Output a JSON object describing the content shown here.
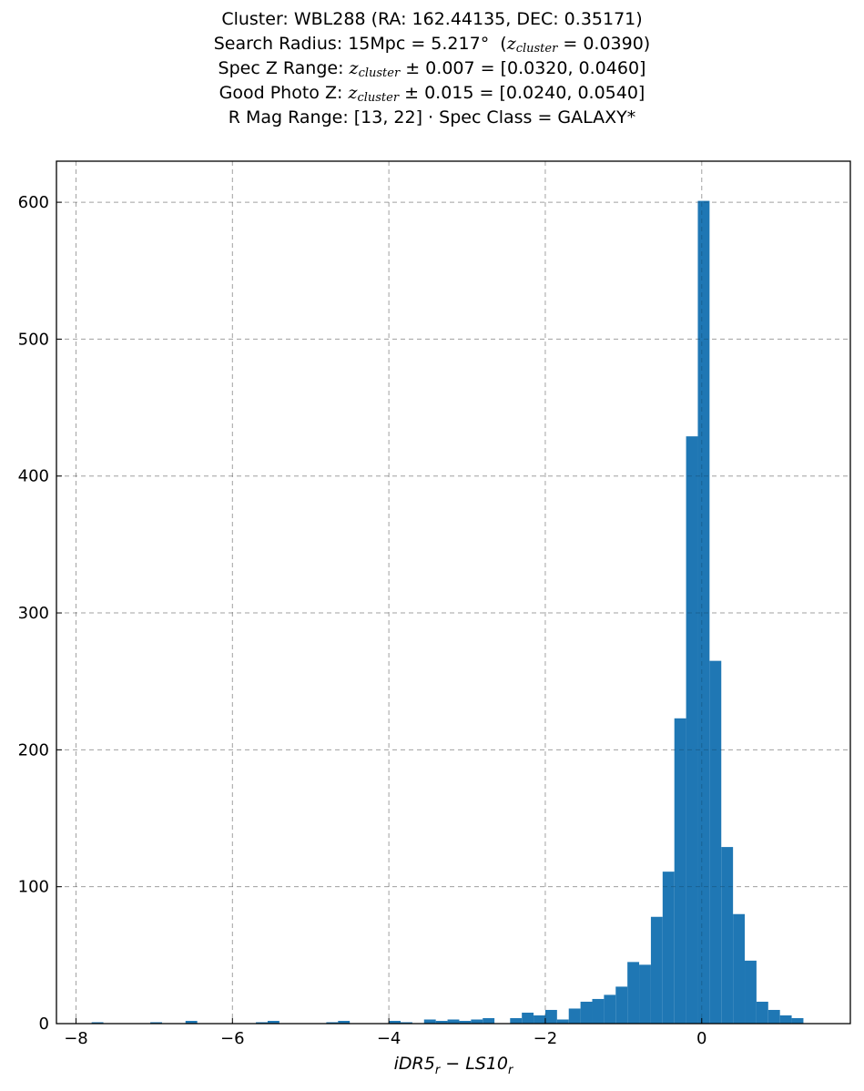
{
  "chart_data": {
    "type": "bar",
    "title_lines": [
      "Cluster: WBL288 (RA: 162.44135, DEC: 0.35171)",
      "Search Radius: 15Mpc = 5.217°  (z_cluster = 0.0390)",
      "Spec Z Range: z_cluster ± 0.007 = [0.0320, 0.0460]",
      "Good Photo Z: z_cluster ± 0.015 = [0.0240, 0.0540]",
      "R Mag Range: [13, 22] · Spec Class = GALAXY*"
    ],
    "title_parts": {
      "l1": "Cluster: WBL288 (RA: 162.44135, DEC: 0.35171)",
      "l2_pre": "Search Radius: 15Mpc = 5.217",
      "l2_deg": "°",
      "l2_z": "z",
      "l2_sub": "cluster",
      "l2_post": " = 0.0390)",
      "l3_pre": "Spec Z Range: ",
      "l3_z": "z",
      "l3_sub": "cluster",
      "l3_post": " ± 0.007 = [0.0320, 0.0460]",
      "l4_pre": "Good Photo Z: ",
      "l4_z": "z",
      "l4_sub": "cluster",
      "l4_post": " ± 0.015 = [0.0240, 0.0540]",
      "l5": "R Mag Range: [13, 22] · Spec Class = GALAXY*"
    },
    "xlabel": "iDR5r − LS10r",
    "xlabel_parts": {
      "a": "iDR5",
      "a_sub": "r",
      "op": " − ",
      "b": "LS10",
      "b_sub": "r"
    },
    "ylabel": "",
    "xlim": [
      -8.25,
      1.9
    ],
    "ylim": [
      0,
      630
    ],
    "xticks": [
      -8,
      -6,
      -4,
      -2,
      0
    ],
    "xtick_labels": [
      "−8",
      "−6",
      "−4",
      "−2",
      "0"
    ],
    "yticks": [
      0,
      100,
      200,
      300,
      400,
      500,
      600
    ],
    "ytick_labels": [
      "0",
      "100",
      "200",
      "300",
      "400",
      "500",
      "600"
    ],
    "grid": true,
    "bar_color": "#1f77b4",
    "bin_width": 0.15,
    "bins": [
      {
        "x0": -7.8,
        "count": 1
      },
      {
        "x0": -7.05,
        "count": 1
      },
      {
        "x0": -6.6,
        "count": 2
      },
      {
        "x0": -5.7,
        "count": 1
      },
      {
        "x0": -5.55,
        "count": 2
      },
      {
        "x0": -4.8,
        "count": 1
      },
      {
        "x0": -4.65,
        "count": 2
      },
      {
        "x0": -4.0,
        "count": 2
      },
      {
        "x0": -3.85,
        "count": 1
      },
      {
        "x0": -3.55,
        "count": 3
      },
      {
        "x0": -3.4,
        "count": 2
      },
      {
        "x0": -3.25,
        "count": 3
      },
      {
        "x0": -3.1,
        "count": 2
      },
      {
        "x0": -2.95,
        "count": 3
      },
      {
        "x0": -2.8,
        "count": 4
      },
      {
        "x0": -2.45,
        "count": 4
      },
      {
        "x0": -2.3,
        "count": 8
      },
      {
        "x0": -2.15,
        "count": 6
      },
      {
        "x0": -2.0,
        "count": 10
      },
      {
        "x0": -1.85,
        "count": 3
      },
      {
        "x0": -1.7,
        "count": 11
      },
      {
        "x0": -1.55,
        "count": 16
      },
      {
        "x0": -1.4,
        "count": 18
      },
      {
        "x0": -1.25,
        "count": 21
      },
      {
        "x0": -1.1,
        "count": 27
      },
      {
        "x0": -0.95,
        "count": 45
      },
      {
        "x0": -0.8,
        "count": 43
      },
      {
        "x0": -0.65,
        "count": 78
      },
      {
        "x0": -0.5,
        "count": 111
      },
      {
        "x0": -0.35,
        "count": 223
      },
      {
        "x0": -0.2,
        "count": 429
      },
      {
        "x0": -0.05,
        "count": 601
      },
      {
        "x0": 0.1,
        "count": 265
      },
      {
        "x0": 0.25,
        "count": 129
      },
      {
        "x0": 0.4,
        "count": 80
      },
      {
        "x0": 0.55,
        "count": 46
      },
      {
        "x0": 0.7,
        "count": 16
      },
      {
        "x0": 0.85,
        "count": 10
      },
      {
        "x0": 1.0,
        "count": 6
      },
      {
        "x0": 1.15,
        "count": 4
      }
    ]
  }
}
